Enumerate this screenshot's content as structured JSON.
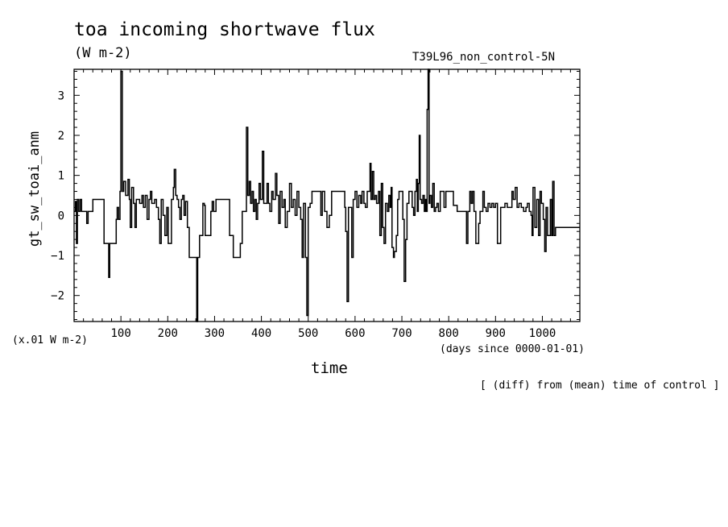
{
  "chart_data": {
    "type": "line",
    "title": "toa incoming shortwave flux",
    "units": "(W m-2)",
    "run_name": "T39L96_non_control-5N",
    "scale_note": "(x.01 W m-2)",
    "time_origin": "(days since 0000-01-01)",
    "xlabel": "time",
    "ylabel": "gt_sw_toai_anm",
    "footnote": "[ (diff) from (mean) time of control ]",
    "xlim": [
      0,
      1080
    ],
    "ylim": [
      -2.65,
      3.65
    ],
    "x_ticks": [
      100,
      200,
      300,
      400,
      500,
      600,
      700,
      800,
      900,
      1000
    ],
    "y_ticks": [
      -2,
      -1,
      0,
      1,
      2,
      3
    ],
    "grid": false,
    "series": [
      {
        "points": [
          [
            0,
            0.1
          ],
          [
            3,
            0.35
          ],
          [
            5,
            -0.7
          ],
          [
            7,
            0.4
          ],
          [
            10,
            0.1
          ],
          [
            13,
            0.4
          ],
          [
            16,
            0.1
          ],
          [
            25,
            0.1
          ],
          [
            27,
            -0.2
          ],
          [
            30,
            0.1
          ],
          [
            37,
            0.1
          ],
          [
            40,
            0.4
          ],
          [
            62,
            0.4
          ],
          [
            64,
            -0.7
          ],
          [
            72,
            -0.7
          ],
          [
            74,
            -1.55
          ],
          [
            76,
            -0.7
          ],
          [
            88,
            -0.7
          ],
          [
            90,
            -0.1
          ],
          [
            92,
            0.2
          ],
          [
            95,
            -0.1
          ],
          [
            98,
            0.6
          ],
          [
            100,
            3.6
          ],
          [
            103,
            0.6
          ],
          [
            106,
            0.85
          ],
          [
            110,
            0.5
          ],
          [
            115,
            0.9
          ],
          [
            118,
            0.4
          ],
          [
            120,
            -0.3
          ],
          [
            123,
            0.7
          ],
          [
            127,
            0.3
          ],
          [
            130,
            -0.3
          ],
          [
            133,
            0.4
          ],
          [
            140,
            0.3
          ],
          [
            145,
            0.5
          ],
          [
            148,
            0.2
          ],
          [
            152,
            0.5
          ],
          [
            156,
            -0.1
          ],
          [
            160,
            0.4
          ],
          [
            163,
            0.6
          ],
          [
            166,
            0.3
          ],
          [
            172,
            0.4
          ],
          [
            176,
            0.2
          ],
          [
            180,
            -0.1
          ],
          [
            183,
            -0.7
          ],
          [
            186,
            0.4
          ],
          [
            190,
            0.0
          ],
          [
            194,
            -0.5
          ],
          [
            198,
            0.2
          ],
          [
            201,
            -0.7
          ],
          [
            205,
            -0.7
          ],
          [
            208,
            0.4
          ],
          [
            212,
            0.7
          ],
          [
            214,
            1.15
          ],
          [
            217,
            0.5
          ],
          [
            220,
            0.4
          ],
          [
            223,
            0.2
          ],
          [
            226,
            -0.1
          ],
          [
            229,
            0.4
          ],
          [
            232,
            0.5
          ],
          [
            235,
            0.0
          ],
          [
            238,
            0.35
          ],
          [
            242,
            -0.3
          ],
          [
            246,
            -1.05
          ],
          [
            260,
            -1.05
          ],
          [
            262,
            -2.65
          ],
          [
            264,
            -1.05
          ],
          [
            268,
            -0.5
          ],
          [
            272,
            -0.5
          ],
          [
            275,
            0.3
          ],
          [
            278,
            0.25
          ],
          [
            280,
            -0.5
          ],
          [
            290,
            -0.5
          ],
          [
            292,
            0.1
          ],
          [
            295,
            0.35
          ],
          [
            298,
            0.1
          ],
          [
            300,
            0.1
          ],
          [
            303,
            0.4
          ],
          [
            330,
            0.4
          ],
          [
            332,
            -0.5
          ],
          [
            338,
            -0.5
          ],
          [
            340,
            -1.05
          ],
          [
            352,
            -1.05
          ],
          [
            355,
            -0.7
          ],
          [
            359,
            0.1
          ],
          [
            365,
            0.1
          ],
          [
            368,
            2.2
          ],
          [
            371,
            0.5
          ],
          [
            374,
            0.85
          ],
          [
            377,
            0.3
          ],
          [
            380,
            0.6
          ],
          [
            383,
            0.1
          ],
          [
            386,
            0.4
          ],
          [
            389,
            -0.1
          ],
          [
            392,
            0.3
          ],
          [
            395,
            0.8
          ],
          [
            398,
            0.4
          ],
          [
            402,
            1.6
          ],
          [
            405,
            0.3
          ],
          [
            409,
            0.3
          ],
          [
            412,
            0.8
          ],
          [
            415,
            0.3
          ],
          [
            418,
            0.1
          ],
          [
            422,
            0.6
          ],
          [
            425,
            0.4
          ],
          [
            430,
            1.05
          ],
          [
            433,
            0.5
          ],
          [
            437,
            -0.2
          ],
          [
            440,
            0.6
          ],
          [
            444,
            0.2
          ],
          [
            448,
            0.4
          ],
          [
            451,
            -0.3
          ],
          [
            455,
            0.1
          ],
          [
            460,
            0.8
          ],
          [
            464,
            0.2
          ],
          [
            468,
            0.4
          ],
          [
            472,
            0.0
          ],
          [
            476,
            0.6
          ],
          [
            480,
            0.2
          ],
          [
            484,
            -0.1
          ],
          [
            487,
            -1.05
          ],
          [
            490,
            0.3
          ],
          [
            494,
            -1.05
          ],
          [
            497,
            -2.5
          ],
          [
            500,
            0.2
          ],
          [
            504,
            0.3
          ],
          [
            508,
            0.6
          ],
          [
            525,
            0.6
          ],
          [
            527,
            0.0
          ],
          [
            530,
            0.6
          ],
          [
            535,
            0.1
          ],
          [
            540,
            -0.3
          ],
          [
            545,
            0.0
          ],
          [
            550,
            0.6
          ],
          [
            575,
            0.6
          ],
          [
            578,
            0.2
          ],
          [
            580,
            -0.4
          ],
          [
            583,
            -2.15
          ],
          [
            586,
            0.2
          ],
          [
            590,
            0.2
          ],
          [
            593,
            -1.05
          ],
          [
            596,
            0.4
          ],
          [
            600,
            0.6
          ],
          [
            604,
            0.2
          ],
          [
            608,
            0.5
          ],
          [
            612,
            0.3
          ],
          [
            615,
            0.6
          ],
          [
            619,
            0.3
          ],
          [
            622,
            0.2
          ],
          [
            626,
            0.6
          ],
          [
            630,
            0.6
          ],
          [
            632,
            1.3
          ],
          [
            634,
            0.4
          ],
          [
            637,
            1.1
          ],
          [
            640,
            0.4
          ],
          [
            643,
            0.5
          ],
          [
            646,
            0.3
          ],
          [
            650,
            0.6
          ],
          [
            653,
            -0.5
          ],
          [
            656,
            0.8
          ],
          [
            659,
            -0.3
          ],
          [
            662,
            -0.7
          ],
          [
            665,
            0.3
          ],
          [
            669,
            0.1
          ],
          [
            672,
            0.5
          ],
          [
            675,
            0.2
          ],
          [
            677,
            0.7
          ],
          [
            679,
            -0.8
          ],
          [
            682,
            -1.05
          ],
          [
            684,
            -0.9
          ],
          [
            688,
            -0.5
          ],
          [
            691,
            0.4
          ],
          [
            694,
            0.6
          ],
          [
            699,
            0.6
          ],
          [
            702,
            -0.1
          ],
          [
            705,
            -1.65
          ],
          [
            708,
            -0.6
          ],
          [
            711,
            0.3
          ],
          [
            715,
            0.6
          ],
          [
            720,
            0.6
          ],
          [
            722,
            0.2
          ],
          [
            725,
            0.0
          ],
          [
            728,
            0.6
          ],
          [
            731,
            0.9
          ],
          [
            733,
            0.1
          ],
          [
            735,
            0.8
          ],
          [
            737,
            2.0
          ],
          [
            739,
            0.4
          ],
          [
            742,
            0.3
          ],
          [
            745,
            0.5
          ],
          [
            748,
            0.1
          ],
          [
            750,
            0.4
          ],
          [
            752,
            0.1
          ],
          [
            754,
            2.65
          ],
          [
            756,
            3.65
          ],
          [
            758,
            0.3
          ],
          [
            760,
            0.5
          ],
          [
            763,
            0.2
          ],
          [
            766,
            0.8
          ],
          [
            769,
            0.1
          ],
          [
            772,
            0.2
          ],
          [
            775,
            0.3
          ],
          [
            778,
            0.1
          ],
          [
            782,
            0.6
          ],
          [
            786,
            0.6
          ],
          [
            790,
            0.2
          ],
          [
            794,
            0.6
          ],
          [
            808,
            0.6
          ],
          [
            810,
            0.25
          ],
          [
            815,
            0.25
          ],
          [
            818,
            0.1
          ],
          [
            822,
            0.1
          ],
          [
            826,
            0.1
          ],
          [
            830,
            0.1
          ],
          [
            835,
            0.1
          ],
          [
            838,
            -0.7
          ],
          [
            841,
            0.1
          ],
          [
            845,
            0.6
          ],
          [
            848,
            0.3
          ],
          [
            851,
            0.6
          ],
          [
            854,
            0.1
          ],
          [
            858,
            -0.7
          ],
          [
            861,
            -0.7
          ],
          [
            864,
            -0.2
          ],
          [
            867,
            0.1
          ],
          [
            870,
            0.1
          ],
          [
            873,
            0.6
          ],
          [
            876,
            0.2
          ],
          [
            880,
            0.1
          ],
          [
            884,
            0.3
          ],
          [
            888,
            0.2
          ],
          [
            892,
            0.3
          ],
          [
            896,
            0.2
          ],
          [
            900,
            0.3
          ],
          [
            904,
            -0.7
          ],
          [
            908,
            -0.7
          ],
          [
            911,
            0.2
          ],
          [
            915,
            0.2
          ],
          [
            920,
            0.3
          ],
          [
            925,
            0.2
          ],
          [
            930,
            0.2
          ],
          [
            935,
            0.6
          ],
          [
            938,
            0.4
          ],
          [
            942,
            0.7
          ],
          [
            946,
            0.2
          ],
          [
            950,
            0.3
          ],
          [
            955,
            0.2
          ],
          [
            960,
            0.1
          ],
          [
            965,
            0.2
          ],
          [
            968,
            0.3
          ],
          [
            972,
            0.1
          ],
          [
            976,
            0.0
          ],
          [
            978,
            -0.5
          ],
          [
            980,
            0.7
          ],
          [
            984,
            -0.3
          ],
          [
            988,
            0.4
          ],
          [
            992,
            -0.5
          ],
          [
            995,
            0.6
          ],
          [
            998,
            0.3
          ],
          [
            1002,
            -0.1
          ],
          [
            1005,
            -0.9
          ],
          [
            1008,
            0.2
          ],
          [
            1011,
            -0.5
          ],
          [
            1014,
            -0.5
          ],
          [
            1017,
            0.4
          ],
          [
            1020,
            -0.5
          ],
          [
            1022,
            0.85
          ],
          [
            1025,
            -0.5
          ],
          [
            1028,
            -0.3
          ]
        ]
      }
    ]
  }
}
